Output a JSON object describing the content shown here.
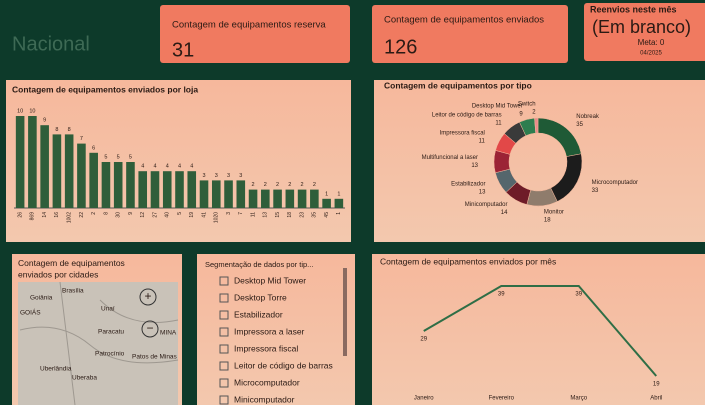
{
  "header": {
    "logo": "Nacional"
  },
  "cards": [
    {
      "title": "Contagem de equipamentos reserva",
      "value": "31"
    },
    {
      "title": "Contagem de equipamentos enviados",
      "value": "126"
    }
  ],
  "reenvios": {
    "title": "Reenvios neste mês",
    "value": "(Em branco)",
    "meta": "Meta: 0",
    "date": "04/2025"
  },
  "chart_data": [
    {
      "type": "bar",
      "title": "Contagem de equipamentos enviados por loja",
      "color": "#2f5e3a",
      "categories": [
        "26",
        "869",
        "14",
        "16",
        "1002",
        "22",
        "2",
        "8",
        "30",
        "9",
        "12",
        "27",
        "40",
        "5",
        "19",
        "41",
        "1020",
        "3",
        "7",
        "11",
        "13",
        "15",
        "18",
        "23",
        "35",
        "45",
        "1"
      ],
      "values": [
        10,
        10,
        9,
        8,
        8,
        7,
        6,
        5,
        5,
        5,
        4,
        4,
        4,
        4,
        4,
        3,
        3,
        3,
        3,
        2,
        2,
        2,
        2,
        2,
        2,
        1,
        1
      ]
    },
    {
      "type": "pie",
      "title": "Contagem de equipamentos por tipo",
      "categories": [
        "Nobreak",
        "Microcomputador",
        "Monitor",
        "Minicomputador",
        "Estabilizador",
        "Multifuncional a laser",
        "Impressora fiscal",
        "Leitor de código de barras",
        "Desktop Mid Tower",
        "Switch"
      ],
      "values": [
        35,
        33,
        18,
        14,
        13,
        13,
        11,
        11,
        9,
        2
      ],
      "colors": [
        "#1f5a36",
        "#1c1c1c",
        "#8f7c6c",
        "#6e1c28",
        "#55666c",
        "#9b2335",
        "#e24848",
        "#3a3a3a",
        "#2e7d4f",
        "#e98a8a"
      ]
    },
    {
      "type": "line",
      "title": "Contagem de equipamentos enviados por mês",
      "color": "#2f6e46",
      "categories": [
        "Janeiro",
        "Fevereiro",
        "Março",
        "Abril"
      ],
      "values": [
        29,
        39,
        39,
        19
      ]
    }
  ],
  "map": {
    "title": "Contagem de equipamentos enviados por cidades",
    "places": [
      "Brasília",
      "Goiânia",
      "GOIÁS",
      "Unaí",
      "Paracatu",
      "Patrocínio",
      "Patos de Minas",
      "Uberlândia",
      "Uberaba",
      "MINA"
    ]
  },
  "slicer": {
    "title": "Segmentação de dados por tip...",
    "items": [
      "Desktop Mid Tower",
      "Desktop Torre",
      "Estabilizador",
      "Impressora a laser",
      "Impressora fiscal",
      "Leitor de código de barras",
      "Microcomputador",
      "Minicomputador"
    ]
  }
}
